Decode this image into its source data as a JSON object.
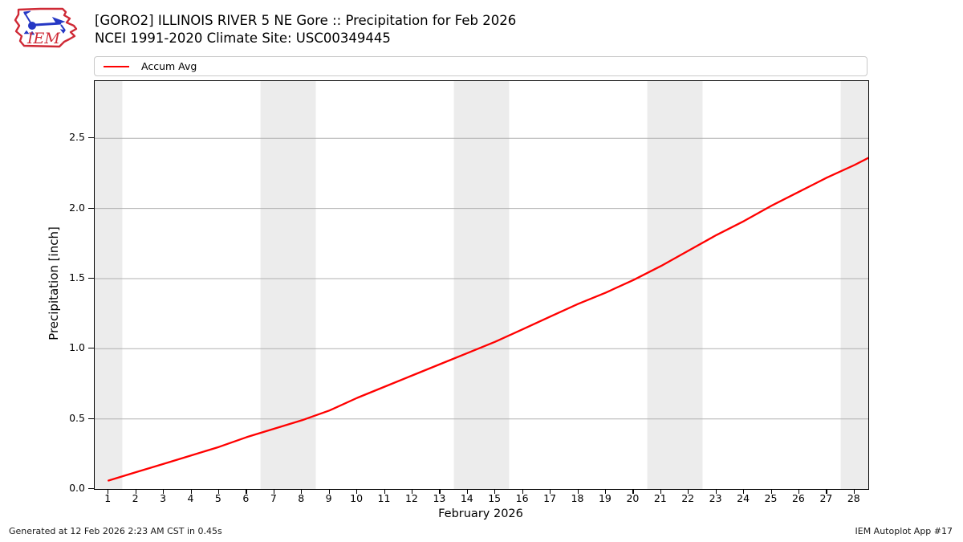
{
  "header": {
    "title_line1": "[GORO2] ILLINOIS RIVER 5 NE Gore :: Precipitation for Feb 2026",
    "title_line2": "NCEI 1991-2020 Climate Site: USC00349445",
    "logo_text": "IEM"
  },
  "legend": {
    "items": [
      {
        "label": "Accum Avg",
        "color": "#ff0000"
      }
    ]
  },
  "chart_data": {
    "type": "line",
    "title": "[GORO2] ILLINOIS RIVER 5 NE Gore :: Precipitation for Feb 2026",
    "subtitle": "NCEI 1991-2020 Climate Site: USC00349445",
    "xlabel": "February 2026",
    "ylabel": "Precipitation [inch]",
    "xlim": [
      0.5,
      28.5
    ],
    "ylim": [
      0,
      2.908
    ],
    "grid": "horizontal",
    "legend_position": "top",
    "xticks": [
      1,
      2,
      3,
      4,
      5,
      6,
      7,
      8,
      9,
      10,
      11,
      12,
      13,
      14,
      15,
      16,
      17,
      18,
      19,
      20,
      21,
      22,
      23,
      24,
      25,
      26,
      27,
      28
    ],
    "yticks": [
      0.0,
      0.5,
      1.0,
      1.5,
      2.0,
      2.5
    ],
    "weekend_bands": [
      [
        0.5,
        1.5
      ],
      [
        6.5,
        8.5
      ],
      [
        13.5,
        15.5
      ],
      [
        20.5,
        22.5
      ],
      [
        27.5,
        28.5
      ]
    ],
    "series": [
      {
        "name": "Accum Avg",
        "color": "#ff0000",
        "x": [
          1,
          2,
          3,
          4,
          5,
          6,
          7,
          8,
          9,
          10,
          11,
          12,
          13,
          14,
          15,
          16,
          17,
          18,
          19,
          20,
          21,
          22,
          23,
          24,
          25,
          26,
          27,
          28,
          28.5
        ],
        "values": [
          0.06,
          0.12,
          0.18,
          0.24,
          0.3,
          0.37,
          0.43,
          0.49,
          0.56,
          0.65,
          0.73,
          0.81,
          0.89,
          0.97,
          1.05,
          1.14,
          1.23,
          1.32,
          1.4,
          1.49,
          1.59,
          1.7,
          1.81,
          1.91,
          2.02,
          2.12,
          2.22,
          2.31,
          2.36
        ]
      }
    ]
  },
  "footer": {
    "left": "Generated at 12 Feb 2026 2:23 AM CST in 0.45s",
    "right": "IEM Autoplot App #17"
  },
  "colors": {
    "accent": "#ff0000",
    "band": "#ececec",
    "grid": "#b0b0b0",
    "axis": "#000000",
    "logo_red": "#cf2a36",
    "logo_blue": "#2638c4"
  }
}
